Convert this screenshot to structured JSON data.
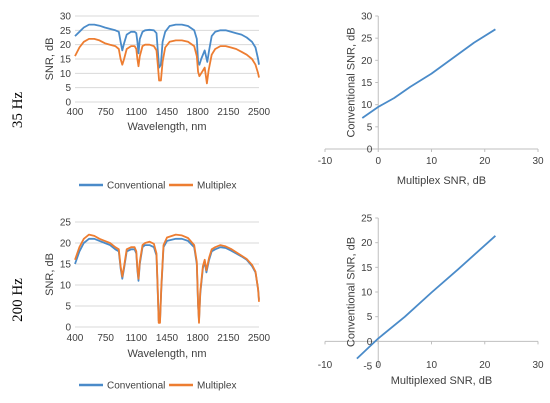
{
  "row_labels": [
    "35 Hz",
    "200 Hz"
  ],
  "colors": {
    "conventional": "#4A8BC9",
    "multiplex": "#ED7D31",
    "axis": "#BFBFBF",
    "grid": "#D9D9D9"
  },
  "chart_data": [
    {
      "id": "tl",
      "type": "line",
      "xlabel": "Wavelength, nm",
      "ylabel": "SNR, dB",
      "xlim": [
        400,
        2500
      ],
      "ylim": [
        0,
        30
      ],
      "xticks": [
        400,
        750,
        1100,
        1450,
        1800,
        2150,
        2500
      ],
      "yticks": [
        0,
        5,
        10,
        15,
        20,
        25,
        30
      ],
      "grid": "horizontal",
      "legend": "bottom",
      "series": [
        {
          "name": "Conventional",
          "color": "#4A8BC9",
          "points": [
            [
              400,
              23
            ],
            [
              450,
              24.5
            ],
            [
              500,
              26
            ],
            [
              560,
              27
            ],
            [
              620,
              27
            ],
            [
              680,
              26.6
            ],
            [
              740,
              26
            ],
            [
              800,
              25.5
            ],
            [
              860,
              25
            ],
            [
              900,
              24.5
            ],
            [
              920,
              21
            ],
            [
              940,
              18
            ],
            [
              960,
              20.5
            ],
            [
              990,
              23.5
            ],
            [
              1040,
              24.5
            ],
            [
              1080,
              24.5
            ],
            [
              1100,
              24
            ],
            [
              1112,
              21
            ],
            [
              1125,
              17
            ],
            [
              1140,
              22
            ],
            [
              1170,
              24.5
            ],
            [
              1200,
              25
            ],
            [
              1250,
              25.2
            ],
            [
              1300,
              25
            ],
            [
              1330,
              24
            ],
            [
              1345,
              18
            ],
            [
              1360,
              12
            ],
            [
              1380,
              13
            ],
            [
              1400,
              21
            ],
            [
              1430,
              24.5
            ],
            [
              1480,
              26.5
            ],
            [
              1550,
              27
            ],
            [
              1620,
              27
            ],
            [
              1690,
              26.5
            ],
            [
              1760,
              25
            ],
            [
              1790,
              22
            ],
            [
              1805,
              14
            ],
            [
              1820,
              13
            ],
            [
              1840,
              15
            ],
            [
              1880,
              18
            ],
            [
              1910,
              14
            ],
            [
              1930,
              18
            ],
            [
              1960,
              23
            ],
            [
              2000,
              24.5
            ],
            [
              2060,
              25
            ],
            [
              2120,
              25
            ],
            [
              2180,
              24.5
            ],
            [
              2240,
              24
            ],
            [
              2300,
              23.5
            ],
            [
              2360,
              22.5
            ],
            [
              2420,
              21
            ],
            [
              2460,
              19
            ],
            [
              2490,
              15
            ],
            [
              2500,
              13
            ]
          ]
        },
        {
          "name": "Multiplex",
          "color": "#ED7D31",
          "points": [
            [
              400,
              16
            ],
            [
              450,
              19
            ],
            [
              500,
              21
            ],
            [
              560,
              22
            ],
            [
              620,
              22
            ],
            [
              680,
              21.5
            ],
            [
              740,
              20.5
            ],
            [
              800,
              20
            ],
            [
              860,
              19.5
            ],
            [
              900,
              18.5
            ],
            [
              920,
              15
            ],
            [
              940,
              13
            ],
            [
              960,
              15
            ],
            [
              990,
              18.5
            ],
            [
              1040,
              19.5
            ],
            [
              1080,
              19.5
            ],
            [
              1100,
              18.5
            ],
            [
              1112,
              15
            ],
            [
              1125,
              12.5
            ],
            [
              1140,
              16
            ],
            [
              1170,
              19.5
            ],
            [
              1200,
              20
            ],
            [
              1250,
              20
            ],
            [
              1300,
              19.5
            ],
            [
              1330,
              18
            ],
            [
              1345,
              13
            ],
            [
              1360,
              7.5
            ],
            [
              1380,
              7.5
            ],
            [
              1400,
              14
            ],
            [
              1430,
              19
            ],
            [
              1480,
              21
            ],
            [
              1550,
              21.5
            ],
            [
              1620,
              21.5
            ],
            [
              1690,
              21
            ],
            [
              1760,
              19.5
            ],
            [
              1790,
              16
            ],
            [
              1805,
              10.5
            ],
            [
              1820,
              9
            ],
            [
              1840,
              10
            ],
            [
              1880,
              12
            ],
            [
              1905,
              6.5
            ],
            [
              1925,
              11
            ],
            [
              1960,
              16.5
            ],
            [
              2000,
              18.5
            ],
            [
              2060,
              19.5
            ],
            [
              2120,
              19.5
            ],
            [
              2180,
              19
            ],
            [
              2240,
              18.5
            ],
            [
              2300,
              17.5
            ],
            [
              2360,
              16.5
            ],
            [
              2420,
              15
            ],
            [
              2460,
              13
            ],
            [
              2490,
              10
            ],
            [
              2500,
              8.5
            ]
          ]
        }
      ]
    },
    {
      "id": "tr",
      "type": "line",
      "xlabel": "Multiplex SNR, dB",
      "ylabel": "Conventional SNR, dB",
      "xlim": [
        -10,
        30
      ],
      "ylim": [
        0,
        30
      ],
      "xticks": [
        -10,
        0,
        10,
        20,
        30
      ],
      "yticks": [
        0,
        5,
        10,
        15,
        20,
        25,
        30
      ],
      "grid": "none",
      "series": [
        {
          "name": "",
          "color": "#4A8BC9",
          "points": [
            [
              -3,
              7
            ],
            [
              0,
              9.5
            ],
            [
              3,
              11.5
            ],
            [
              6,
              14
            ],
            [
              10,
              17
            ],
            [
              14,
              20.5
            ],
            [
              18,
              24
            ],
            [
              22,
              27
            ]
          ]
        }
      ]
    },
    {
      "id": "bl",
      "type": "line",
      "xlabel": "Wavelength, nm",
      "ylabel": "SNR, dB",
      "xlim": [
        400,
        2500
      ],
      "ylim": [
        0,
        25
      ],
      "xticks": [
        400,
        750,
        1100,
        1450,
        1800,
        2150,
        2500
      ],
      "yticks": [
        0,
        5,
        10,
        15,
        20,
        25
      ],
      "grid": "horizontal",
      "legend": "bottom",
      "series": [
        {
          "name": "Conventional",
          "color": "#4A8BC9",
          "points": [
            [
              400,
              15
            ],
            [
              450,
              18
            ],
            [
              500,
              20
            ],
            [
              560,
              21
            ],
            [
              620,
              21
            ],
            [
              680,
              20.5
            ],
            [
              740,
              20
            ],
            [
              800,
              19.5
            ],
            [
              860,
              18.5
            ],
            [
              900,
              18
            ],
            [
              920,
              14
            ],
            [
              940,
              11.5
            ],
            [
              960,
              14
            ],
            [
              990,
              18
            ],
            [
              1040,
              18.5
            ],
            [
              1080,
              18.5
            ],
            [
              1100,
              17.5
            ],
            [
              1112,
              13.5
            ],
            [
              1125,
              11
            ],
            [
              1140,
              15
            ],
            [
              1170,
              19
            ],
            [
              1200,
              19.5
            ],
            [
              1250,
              19.5
            ],
            [
              1300,
              19
            ],
            [
              1330,
              17
            ],
            [
              1345,
              8
            ],
            [
              1355,
              1.5
            ],
            [
              1370,
              1.5
            ],
            [
              1385,
              9
            ],
            [
              1410,
              19
            ],
            [
              1450,
              20.5
            ],
            [
              1550,
              21
            ],
            [
              1620,
              21
            ],
            [
              1690,
              20.5
            ],
            [
              1760,
              19
            ],
            [
              1790,
              15
            ],
            [
              1805,
              5
            ],
            [
              1815,
              1.5
            ],
            [
              1830,
              8
            ],
            [
              1860,
              14
            ],
            [
              1880,
              15.5
            ],
            [
              1900,
              13
            ],
            [
              1930,
              16
            ],
            [
              1960,
              18
            ],
            [
              2000,
              18.5
            ],
            [
              2060,
              19
            ],
            [
              2120,
              18.8
            ],
            [
              2180,
              18.2
            ],
            [
              2240,
              17.5
            ],
            [
              2300,
              16.8
            ],
            [
              2360,
              16
            ],
            [
              2420,
              14.5
            ],
            [
              2460,
              13
            ],
            [
              2490,
              9
            ],
            [
              2500,
              6.5
            ]
          ]
        },
        {
          "name": "Multiplex",
          "color": "#ED7D31",
          "points": [
            [
              400,
              16
            ],
            [
              450,
              19
            ],
            [
              500,
              21
            ],
            [
              560,
              22
            ],
            [
              620,
              21.7
            ],
            [
              680,
              21
            ],
            [
              740,
              20.5
            ],
            [
              800,
              20
            ],
            [
              860,
              19
            ],
            [
              900,
              18.5
            ],
            [
              920,
              14.5
            ],
            [
              940,
              12
            ],
            [
              960,
              14.5
            ],
            [
              990,
              18.5
            ],
            [
              1040,
              19
            ],
            [
              1080,
              19
            ],
            [
              1100,
              18
            ],
            [
              1112,
              14
            ],
            [
              1125,
              11.5
            ],
            [
              1140,
              15.5
            ],
            [
              1170,
              19.5
            ],
            [
              1200,
              20
            ],
            [
              1250,
              20.3
            ],
            [
              1300,
              19.8
            ],
            [
              1330,
              17.5
            ],
            [
              1345,
              8.5
            ],
            [
              1355,
              1
            ],
            [
              1370,
              1
            ],
            [
              1385,
              9.5
            ],
            [
              1410,
              19.5
            ],
            [
              1450,
              21.3
            ],
            [
              1550,
              22
            ],
            [
              1620,
              21.8
            ],
            [
              1690,
              21.2
            ],
            [
              1760,
              19.5
            ],
            [
              1790,
              15.5
            ],
            [
              1805,
              5.5
            ],
            [
              1815,
              1
            ],
            [
              1830,
              8.5
            ],
            [
              1860,
              14.5
            ],
            [
              1880,
              16
            ],
            [
              1900,
              13.5
            ],
            [
              1930,
              16.5
            ],
            [
              1960,
              18.5
            ],
            [
              2000,
              19
            ],
            [
              2060,
              19.5
            ],
            [
              2120,
              19.2
            ],
            [
              2180,
              18.6
            ],
            [
              2240,
              17.8
            ],
            [
              2300,
              17
            ],
            [
              2360,
              16.2
            ],
            [
              2420,
              14.8
            ],
            [
              2460,
              13.2
            ],
            [
              2490,
              9
            ],
            [
              2500,
              6
            ]
          ]
        }
      ]
    },
    {
      "id": "br",
      "type": "line",
      "xlabel": "Multiplexed SNR, dB",
      "ylabel": "Conventional SNR, dB",
      "xlim": [
        -10,
        30
      ],
      "ylim": [
        -5,
        25
      ],
      "xticks": [
        -10,
        0,
        10,
        20,
        30
      ],
      "yticks": [
        -5,
        0,
        5,
        10,
        15,
        20,
        25
      ],
      "grid": "none",
      "series": [
        {
          "name": "",
          "color": "#4A8BC9",
          "points": [
            [
              -4,
              -3.5
            ],
            [
              0,
              0.6
            ],
            [
              5,
              5
            ],
            [
              10,
              9.9
            ],
            [
              15,
              14.6
            ],
            [
              22,
              21.4
            ]
          ]
        }
      ]
    }
  ]
}
